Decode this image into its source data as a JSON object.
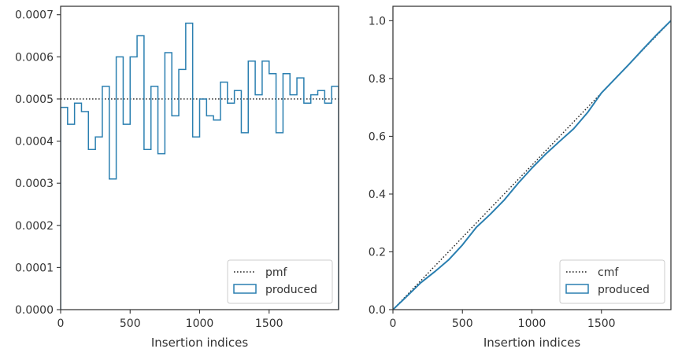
{
  "colors": {
    "produced": "#2a7fb0",
    "reference": "#222222",
    "axis": "#333333",
    "legend_border": "#cccccc"
  },
  "chart_data": [
    {
      "type": "histogram",
      "xlabel": "Insertion indices",
      "ylabel": "",
      "xlim": [
        0,
        2000
      ],
      "ylim": [
        0,
        0.00072
      ],
      "grid": false,
      "legend_placement": "lower-right",
      "xticks": [
        0,
        500,
        1000,
        1500
      ],
      "xtick_labels": [
        "0",
        "500",
        "1000",
        "1500"
      ],
      "yticks": [
        0,
        0.0001,
        0.0002,
        0.0003,
        0.0004,
        0.0005,
        0.0006,
        0.0007
      ],
      "ytick_labels": [
        "0.0000",
        "0.0001",
        "0.0002",
        "0.0003",
        "0.0004",
        "0.0005",
        "0.0006",
        "0.0007"
      ],
      "series": [
        {
          "name": "pmf",
          "style": "dotted",
          "x": [
            0,
            2000
          ],
          "y": [
            0.0005,
            0.0005
          ]
        },
        {
          "name": "produced",
          "style": "step",
          "bin_width": 50,
          "bin_starts": [
            0,
            50,
            100,
            150,
            200,
            250,
            300,
            350,
            400,
            450,
            500,
            550,
            600,
            650,
            700,
            750,
            800,
            850,
            900,
            950,
            1000,
            1050,
            1100,
            1150,
            1200,
            1250,
            1300,
            1350,
            1400,
            1450,
            1500,
            1550,
            1600,
            1650,
            1700,
            1750,
            1800,
            1850,
            1900,
            1950
          ],
          "values": [
            0.00048,
            0.00044,
            0.00049,
            0.00047,
            0.00038,
            0.00041,
            0.00053,
            0.00031,
            0.0006,
            0.00044,
            0.0006,
            0.00065,
            0.00038,
            0.00053,
            0.00037,
            0.00061,
            0.00046,
            0.00057,
            0.00068,
            0.00041,
            0.0005,
            0.00046,
            0.00045,
            0.00054,
            0.00049,
            0.00052,
            0.00042,
            0.00059,
            0.00051,
            0.00059,
            0.00056,
            0.00042,
            0.00056,
            0.00051,
            0.00055,
            0.00049,
            0.00051,
            0.00052,
            0.00049,
            0.00053
          ]
        }
      ]
    },
    {
      "type": "line",
      "xlabel": "Insertion indices",
      "ylabel": "",
      "xlim": [
        0,
        2000
      ],
      "ylim": [
        0,
        1.05
      ],
      "grid": false,
      "legend_placement": "lower-right",
      "xticks": [
        0,
        500,
        1000,
        1500
      ],
      "xtick_labels": [
        "0",
        "500",
        "1000",
        "1500"
      ],
      "yticks": [
        0,
        0.2,
        0.4,
        0.6,
        0.8,
        1.0
      ],
      "ytick_labels": [
        "0.0",
        "0.2",
        "0.4",
        "0.6",
        "0.8",
        "1.0"
      ],
      "series": [
        {
          "name": "cmf",
          "style": "dotted",
          "x": [
            0,
            2000
          ],
          "y": [
            0,
            1.0
          ]
        },
        {
          "name": "produced",
          "style": "solid",
          "x": [
            0,
            100,
            200,
            300,
            400,
            500,
            600,
            700,
            800,
            900,
            1000,
            1100,
            1200,
            1300,
            1400,
            1500,
            1600,
            1700,
            1800,
            1900,
            2000
          ],
          "y": [
            0,
            0.046,
            0.093,
            0.131,
            0.172,
            0.224,
            0.285,
            0.33,
            0.379,
            0.437,
            0.49,
            0.539,
            0.583,
            0.626,
            0.682,
            0.75,
            0.8,
            0.85,
            0.902,
            0.953,
            1.0
          ]
        }
      ]
    }
  ]
}
